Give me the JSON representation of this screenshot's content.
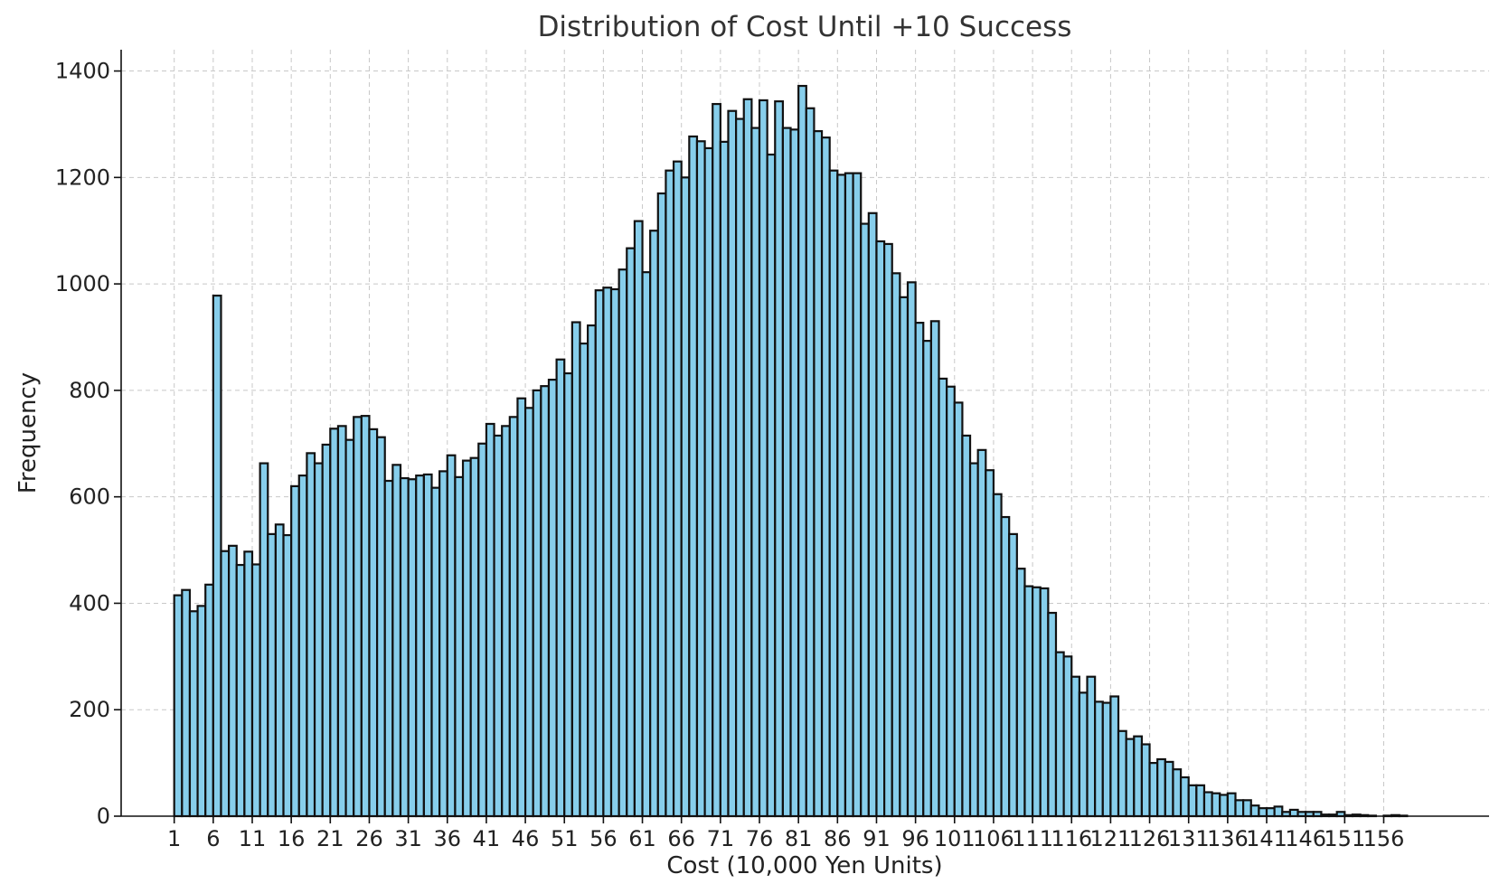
{
  "chart_data": {
    "type": "bar",
    "title": "Distribution of Cost Until +10 Success",
    "xlabel": "Cost (10,000 Yen Units)",
    "ylabel": "Frequency",
    "ylim": [
      0,
      1440
    ],
    "xlim": [
      -5.8,
      169.5
    ],
    "yticks": [
      0,
      200,
      400,
      600,
      800,
      1000,
      1200,
      1400
    ],
    "xticks": [
      1,
      6,
      11,
      16,
      21,
      26,
      31,
      36,
      41,
      46,
      51,
      56,
      61,
      66,
      71,
      76,
      81,
      86,
      91,
      96,
      101,
      106,
      111,
      116,
      121,
      126,
      131,
      136,
      141,
      146,
      151,
      156
    ],
    "bin_start": 1,
    "bin_width": 1,
    "grid": true,
    "colors": {
      "bar_fill": "#87ceeb",
      "bar_edge": "#111111",
      "grid": "#c8c8c8"
    },
    "values": [
      415,
      425,
      385,
      395,
      435,
      978,
      498,
      508,
      472,
      497,
      473,
      663,
      530,
      548,
      528,
      620,
      640,
      682,
      663,
      698,
      728,
      733,
      707,
      750,
      752,
      727,
      712,
      630,
      660,
      635,
      633,
      640,
      642,
      617,
      648,
      678,
      637,
      668,
      673,
      700,
      737,
      715,
      733,
      750,
      785,
      767,
      800,
      808,
      820,
      858,
      832,
      928,
      888,
      922,
      988,
      993,
      990,
      1027,
      1067,
      1118,
      1022,
      1100,
      1170,
      1213,
      1230,
      1200,
      1277,
      1268,
      1255,
      1338,
      1267,
      1325,
      1310,
      1347,
      1293,
      1345,
      1243,
      1343,
      1293,
      1290,
      1372,
      1330,
      1287,
      1275,
      1213,
      1205,
      1208,
      1208,
      1113,
      1133,
      1080,
      1075,
      1020,
      975,
      1003,
      927,
      893,
      930,
      822,
      807,
      777,
      715,
      663,
      688,
      650,
      605,
      562,
      530,
      465,
      432,
      430,
      428,
      382,
      308,
      300,
      262,
      232,
      262,
      215,
      213,
      225,
      160,
      145,
      150,
      135,
      100,
      107,
      102,
      88,
      73,
      58,
      58,
      45,
      43,
      40,
      43,
      30,
      30,
      20,
      15,
      15,
      18,
      8,
      12,
      8,
      8,
      8,
      3,
      3,
      8,
      2,
      3,
      2,
      1,
      0,
      1,
      2,
      1,
      0,
      0,
      0
    ]
  }
}
